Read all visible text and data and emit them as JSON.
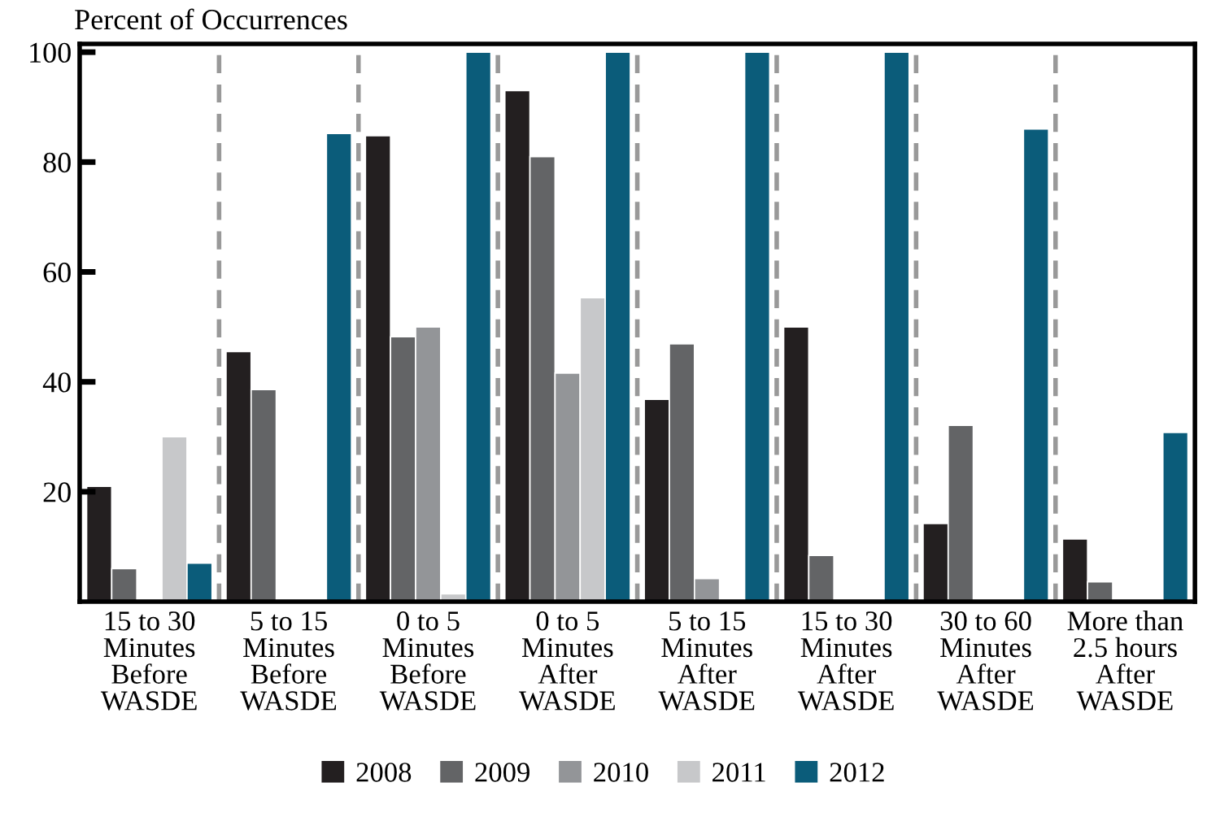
{
  "chart_data": {
    "type": "bar",
    "ylabel": "Percent of Occurrences",
    "categories": [
      "15 to 30\nMinutes\nBefore\nWASDE",
      "5 to 15\nMinutes\nBefore\nWASDE",
      "0 to 5\nMinutes\nBefore\nWASDE",
      "0 to 5\nMinutes\nAfter\nWASDE",
      "5 to 15\nMinutes\nAfter\nWASDE",
      "15 to 30\nMinutes\nAfter\nWASDE",
      "30 to 60\nMinutes\nAfter\nWASDE",
      "More than\n2.5 hours\nAfter\nWASDE"
    ],
    "series": [
      {
        "name": "2008",
        "color": "#231f20",
        "values": [
          21,
          45.5,
          84.8,
          93,
          36.8,
          50,
          14.2,
          11.4
        ]
      },
      {
        "name": "2009",
        "color": "#636466",
        "values": [
          6,
          38.6,
          48.2,
          81,
          46.9,
          8.4,
          32.1,
          3.6
        ]
      },
      {
        "name": "2010",
        "color": "#939598",
        "values": [
          null,
          null,
          50,
          41.6,
          4.2,
          null,
          null,
          null
        ]
      },
      {
        "name": "2011",
        "color": "#c7c8ca",
        "values": [
          30,
          null,
          1.4,
          55.3,
          null,
          null,
          null,
          null
        ]
      },
      {
        "name": "2012",
        "color": "#0b5c7a",
        "values": [
          7,
          85.2,
          100,
          100,
          100,
          100,
          86,
          30.8
        ]
      }
    ],
    "ylim": [
      0,
      101.5
    ],
    "yticks": [
      20,
      40,
      60,
      80,
      100
    ],
    "grid": false,
    "legend": "bottom"
  }
}
